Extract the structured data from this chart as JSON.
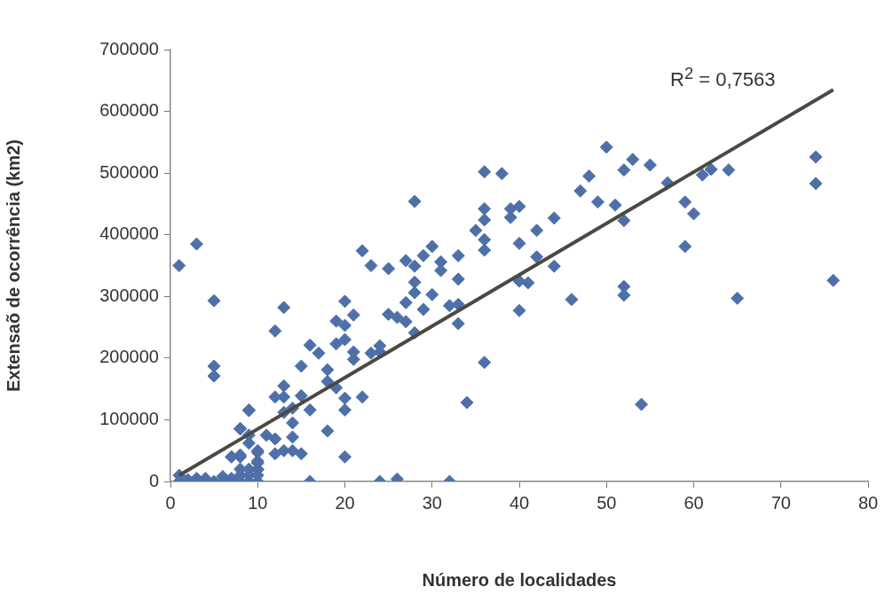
{
  "chart_data": {
    "type": "scatter",
    "xlabel": "Número de localidades",
    "ylabel": "Extensaõ de ocorrência (km2)",
    "xlim": [
      0,
      80
    ],
    "xticks": [
      0,
      10,
      20,
      30,
      40,
      50,
      60,
      70,
      80
    ],
    "ylim": [
      0,
      700000
    ],
    "yticks": [
      0,
      100000,
      200000,
      300000,
      400000,
      500000,
      600000,
      700000
    ],
    "grid": false,
    "legend": false,
    "marker": "diamond",
    "annotations": [
      "R$^{2}$ = 0,7563"
    ],
    "series": [
      {
        "color": "#4e70a8",
        "x": [
          1,
          1,
          2,
          3,
          4,
          5,
          6,
          6,
          7,
          7,
          8,
          8,
          8,
          8,
          8,
          9,
          9,
          9,
          9,
          10,
          10,
          10,
          10,
          10,
          9,
          1,
          3,
          5,
          5,
          5,
          13,
          12,
          9,
          8,
          16,
          15,
          17,
          18,
          18,
          19,
          19,
          20,
          20,
          21,
          19,
          20,
          21,
          21,
          23,
          24,
          13,
          12,
          13,
          15,
          14,
          13,
          14,
          16,
          18,
          20,
          20,
          22,
          9,
          7,
          8,
          12,
          12,
          13,
          14,
          14,
          15,
          10,
          10,
          10,
          20,
          16,
          24,
          26,
          32,
          22,
          23,
          25,
          28,
          36,
          38,
          27,
          28,
          29,
          30,
          31,
          31,
          33,
          28,
          28,
          30,
          27,
          29,
          33,
          25,
          26,
          27,
          28,
          32,
          33,
          33,
          35,
          36,
          36,
          36,
          36,
          39,
          39,
          40,
          42,
          40,
          44,
          42,
          44,
          40,
          41,
          40,
          46,
          36,
          34,
          47,
          48,
          49,
          50,
          51,
          52,
          52,
          52,
          52,
          53,
          55,
          57,
          61,
          62,
          64,
          59,
          60,
          59,
          74,
          74,
          76,
          65,
          54,
          24,
          11
        ],
        "values": [
          10000,
          0,
          3000,
          5000,
          5000,
          0,
          0,
          8000,
          5000,
          40000,
          0,
          10000,
          20000,
          40000,
          85000,
          0,
          10000,
          20000,
          75000,
          0,
          10000,
          20000,
          30000,
          50000,
          115000,
          350000,
          385000,
          293000,
          187000,
          171000,
          282000,
          244000,
          116000,
          86000,
          221000,
          187000,
          208000,
          181000,
          162000,
          152000,
          260000,
          253000,
          292000,
          270000,
          223000,
          230000,
          210000,
          198000,
          208000,
          220000,
          155000,
          137000,
          137000,
          139000,
          119000,
          112000,
          95000,
          116000,
          82000,
          135000,
          116000,
          137000,
          62000,
          40000,
          43000,
          69000,
          45000,
          50000,
          72000,
          50000,
          45000,
          47000,
          33000,
          19000,
          40000,
          0,
          0,
          4000,
          0,
          374000,
          350000,
          345000,
          454000,
          502000,
          499000,
          358000,
          349000,
          366000,
          381000,
          356000,
          342000,
          366000,
          323000,
          306000,
          303000,
          290000,
          279000,
          328000,
          271000,
          266000,
          259000,
          241000,
          285000,
          287000,
          256000,
          407000,
          442000,
          424000,
          392000,
          375000,
          442000,
          428000,
          446000,
          407000,
          386000,
          427000,
          364000,
          349000,
          325000,
          322000,
          277000,
          295000,
          193000,
          128000,
          471000,
          495000,
          453000,
          542000,
          448000,
          505000,
          423000,
          316000,
          302000,
          522000,
          513000,
          484000,
          497000,
          506000,
          505000,
          453000,
          434000,
          381000,
          526000,
          483000,
          326000,
          297000,
          125000,
          210000,
          75000
        ]
      },
      {
        "type": "line",
        "color": "#4a4a42",
        "marker": "none",
        "x": [
          1,
          76
        ],
        "values": [
          10000,
          635000
        ]
      }
    ]
  }
}
